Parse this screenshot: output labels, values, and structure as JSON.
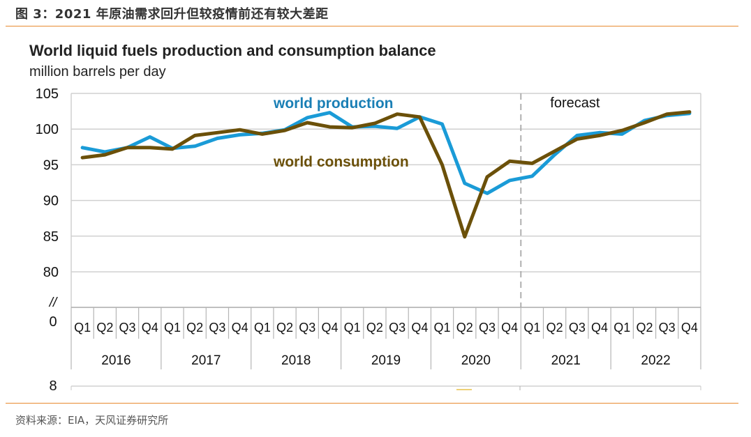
{
  "figure": {
    "caption": "图 3：2021 年原油需求回升但较疫情前还有较大差距",
    "source": "资料来源：EIA，天风证券研究所"
  },
  "chart_data": {
    "type": "line",
    "title": "World liquid fuels production and consumption balance",
    "subtitle": "million barrels per day",
    "xlabel": "",
    "ylabel": "million barrels per day",
    "ylim": [
      80,
      105
    ],
    "yticks": [
      "105",
      "100",
      "95",
      "90",
      "85",
      "80"
    ],
    "ytick_values": [
      105,
      100,
      95,
      90,
      85,
      80
    ],
    "axis_break_label": "//",
    "axis_zero_label": "0",
    "extra_tick_label": "8",
    "grid": true,
    "quarters": [
      "Q1",
      "Q2",
      "Q3",
      "Q4",
      "Q1",
      "Q2",
      "Q3",
      "Q4",
      "Q1",
      "Q2",
      "Q3",
      "Q4",
      "Q1",
      "Q2",
      "Q3",
      "Q4",
      "Q1",
      "Q2",
      "Q3",
      "Q4",
      "Q1",
      "Q2",
      "Q3",
      "Q4",
      "Q1",
      "Q2",
      "Q3",
      "Q4"
    ],
    "years": [
      "2016",
      "2017",
      "2018",
      "2019",
      "2020",
      "2021",
      "2022"
    ],
    "categories": [
      "2016Q1",
      "2016Q2",
      "2016Q3",
      "2016Q4",
      "2017Q1",
      "2017Q2",
      "2017Q3",
      "2017Q4",
      "2018Q1",
      "2018Q2",
      "2018Q3",
      "2018Q4",
      "2019Q1",
      "2019Q2",
      "2019Q3",
      "2019Q4",
      "2020Q1",
      "2020Q2",
      "2020Q3",
      "2020Q4",
      "2021Q1",
      "2021Q2",
      "2021Q3",
      "2021Q4",
      "2022Q1",
      "2022Q2",
      "2022Q3",
      "2022Q4"
    ],
    "forecast_start_index": 20,
    "forecast_label": "forecast",
    "series": [
      {
        "name": "world production",
        "color": "#1a9bd7",
        "label_color": "#1a7fb5",
        "values": [
          97.4,
          96.8,
          97.4,
          98.9,
          97.3,
          97.6,
          98.7,
          99.2,
          99.4,
          99.9,
          101.6,
          102.3,
          100.3,
          100.4,
          100.1,
          101.7,
          100.7,
          92.4,
          91.0,
          92.8,
          93.4,
          96.4,
          99.1,
          99.5,
          99.3,
          101.2,
          101.9,
          102.2
        ]
      },
      {
        "name": "world consumption",
        "color": "#6b5009",
        "label_color": "#6b5009",
        "values": [
          96.0,
          96.4,
          97.4,
          97.4,
          97.2,
          99.1,
          99.5,
          99.9,
          99.3,
          99.8,
          100.9,
          100.3,
          100.2,
          100.8,
          102.1,
          101.7,
          95.0,
          84.9,
          93.3,
          95.5,
          95.2,
          96.9,
          98.6,
          99.1,
          99.8,
          100.9,
          102.1,
          102.4
        ]
      }
    ]
  }
}
